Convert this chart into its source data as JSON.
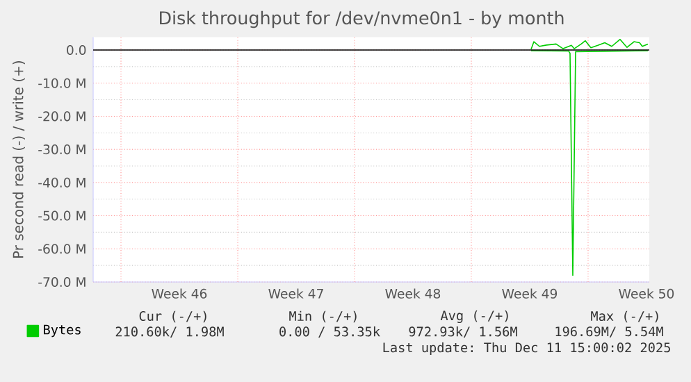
{
  "chart_data": {
    "type": "line",
    "title": "Disk throughput for /dev/nvme0n1 - by month",
    "ylabel": "Pr second read (-) / write (+)",
    "xlim": [
      "2025-11-08T08:00",
      "2025-12-11T16:00"
    ],
    "xticks": [
      {
        "value": "2025-11-10",
        "label": null
      },
      {
        "value": "2025-11-17",
        "label": null
      },
      {
        "value": "2025-11-24",
        "label": null
      },
      {
        "value": "2025-12-01",
        "label": null
      },
      {
        "value": "2025-12-08",
        "label": null
      },
      {
        "value": "2025-11-13T12:00",
        "label": "Week 46"
      },
      {
        "value": "2025-11-20T12:00",
        "label": "Week 47"
      },
      {
        "value": "2025-11-27T12:00",
        "label": "Week 48"
      },
      {
        "value": "2025-12-04T12:00",
        "label": "Week 49"
      },
      {
        "value": "2025-12-11T12:00",
        "label": "Week 50"
      }
    ],
    "ylim": [
      -70,
      3.9
    ],
    "yticks": [
      {
        "value": 0,
        "label": "0.0"
      },
      {
        "value": -10,
        "label": "-10.0 M"
      },
      {
        "value": -20,
        "label": "-20.0 M"
      },
      {
        "value": -30,
        "label": "-30.0 M"
      },
      {
        "value": -40,
        "label": "-40.0 M"
      },
      {
        "value": -50,
        "label": "-50.0 M"
      },
      {
        "value": -60,
        "label": "-60.0 M"
      },
      {
        "value": -70,
        "label": "-70.0 M"
      }
    ],
    "series": [
      {
        "name": "Bytes",
        "color": "#00cc00",
        "x": [
          "2025-12-04T14:00",
          "2025-12-04T18:00",
          "2025-12-05T02:00",
          "2025-12-05T12:00",
          "2025-12-06T02:00",
          "2025-12-06T12:00",
          "2025-12-07T00:00",
          "2025-12-07T04:00",
          "2025-12-07T14:00",
          "2025-12-07T20:00",
          "2025-12-08T04:00",
          "2025-12-08T14:00",
          "2025-12-09T00:00",
          "2025-12-09T10:00",
          "2025-12-09T22:00",
          "2025-12-10T08:00",
          "2025-12-10T18:00",
          "2025-12-11T02:00",
          "2025-12-11T06:00",
          "2025-12-11T14:00"
        ],
        "values": [
          0.2,
          2.5,
          1.1,
          1.5,
          1.8,
          0.4,
          1.4,
          0.4,
          1.8,
          2.8,
          0.7,
          1.4,
          2.2,
          1.1,
          3.2,
          0.8,
          2.5,
          2.2,
          1.1,
          1.8
        ]
      },
      {
        "color": "#00cc00",
        "x": [
          "2025-12-04T14:00",
          "2025-12-06T20:00",
          "2025-12-06T22:00",
          "2025-12-07T02:00",
          "2025-12-07T06:00",
          "2025-12-11T14:00"
        ],
        "values": [
          -0.2,
          -0.3,
          -1.0,
          -68,
          -0.5,
          -0.2
        ]
      }
    ],
    "ref_lines": [
      {
        "axis": "y",
        "value": 0,
        "color": "#000000"
      }
    ],
    "grid": true,
    "legend": "bottom left",
    "annotations": [
      "Cur (-/+)",
      "Min (-/+)",
      "Avg (-/+)",
      "Max (-/+)",
      "210.60k/ 1.98M",
      "0.00 / 53.35k",
      "972.93k/ 1.56M",
      "196.69M/ 5.54M",
      "Last update: Thu Dec 11 15:00:02 2025"
    ]
  }
}
